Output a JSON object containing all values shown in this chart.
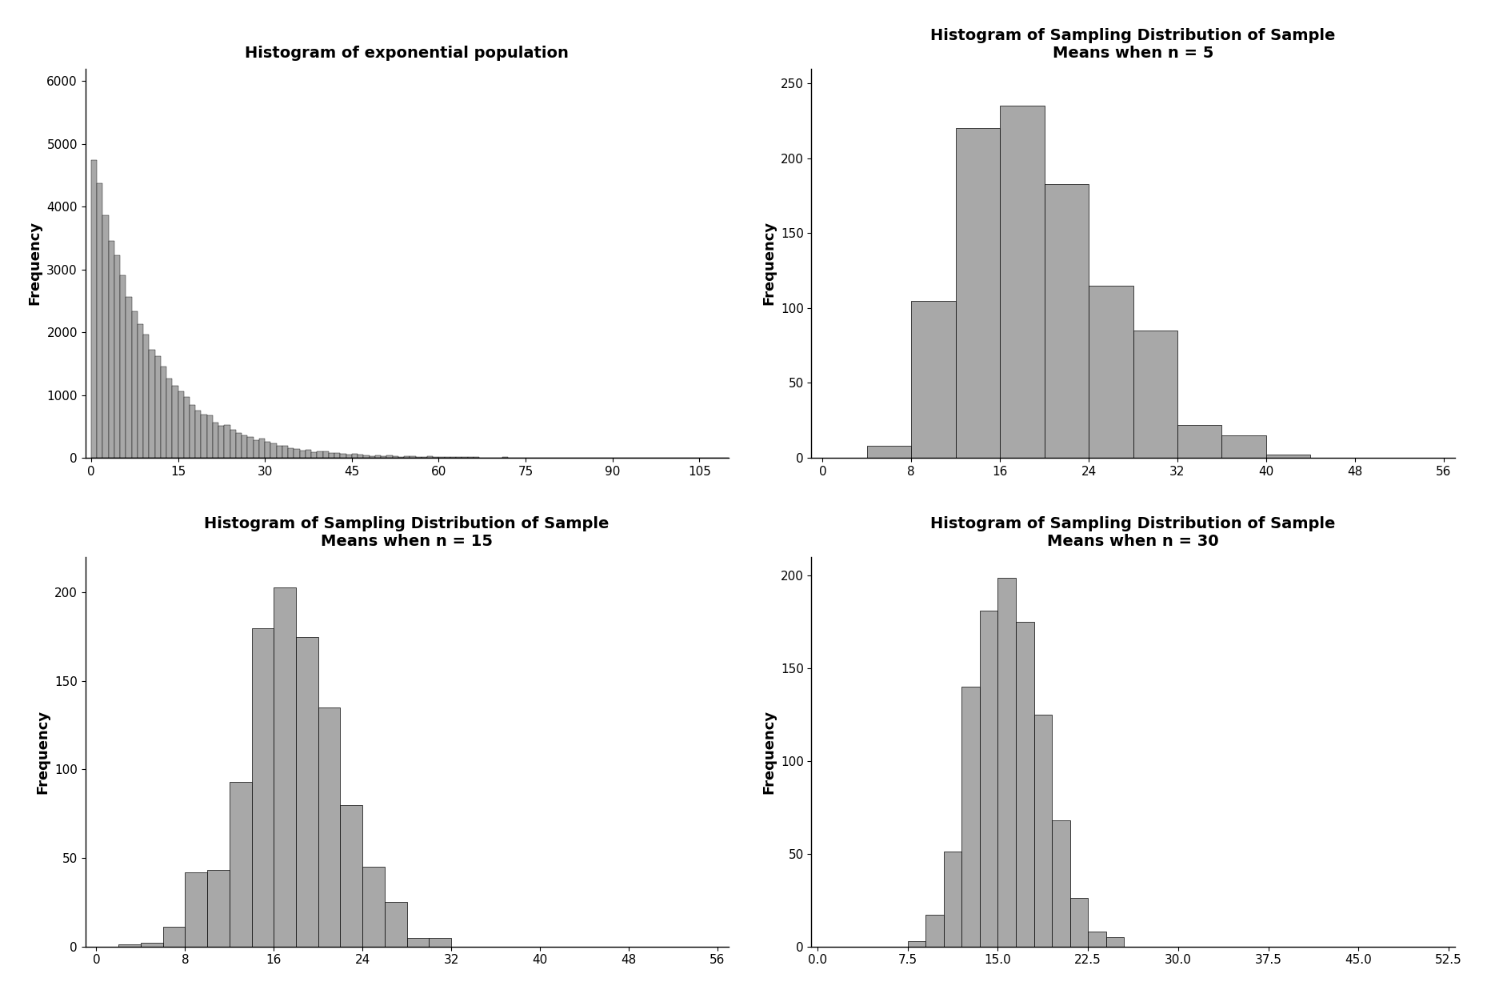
{
  "title_pop": "Histogram of exponential population",
  "title_n5": "Histogram of Sampling Distribution of Sample\nMeans when n = 5",
  "title_n15": "Histogram of Sampling Distribution of Sample\nMeans when n = 15",
  "title_n30": "Histogram of Sampling Distribution of Sample\nMeans when n = 30",
  "ylabel": "Frequency",
  "bar_color": "#a8a8a8",
  "bar_edgecolor": "#000000",
  "background_color": "#ffffff",
  "pop_xlim": [
    -1,
    110
  ],
  "pop_ylim": [
    0,
    6200
  ],
  "pop_xticks": [
    0,
    15,
    30,
    45,
    60,
    75,
    90,
    105
  ],
  "pop_yticks": [
    0,
    1000,
    2000,
    3000,
    4000,
    5000,
    6000
  ],
  "n5_xlim": [
    -1,
    57
  ],
  "n5_ylim": [
    0,
    260
  ],
  "n5_xticks": [
    0,
    8,
    16,
    24,
    32,
    40,
    48,
    56
  ],
  "n5_yticks": [
    0,
    50,
    100,
    150,
    200,
    250
  ],
  "n5_bin_edges": [
    4,
    8,
    12,
    16,
    20,
    24,
    28,
    32,
    36,
    40
  ],
  "n5_heights": [
    8,
    105,
    220,
    235,
    183,
    115,
    85,
    22,
    15,
    2
  ],
  "n15_xlim": [
    -1,
    57
  ],
  "n15_ylim": [
    0,
    220
  ],
  "n15_xticks": [
    0,
    8,
    16,
    24,
    32,
    40,
    48,
    56
  ],
  "n15_yticks": [
    0,
    50,
    100,
    150,
    200
  ],
  "n15_bin_edges": [
    2,
    4,
    6,
    8,
    10,
    12,
    14,
    16,
    18,
    20,
    22,
    24,
    26,
    28,
    30,
    32
  ],
  "n15_heights": [
    1,
    2,
    11,
    42,
    43,
    93,
    180,
    203,
    175,
    135,
    80,
    45,
    25,
    5,
    5
  ],
  "n30_xlim": [
    -0.5,
    53
  ],
  "n30_ylim": [
    0,
    210
  ],
  "n30_xticks": [
    0,
    7.5,
    15,
    22.5,
    30,
    37.5,
    45,
    52.5
  ],
  "n30_yticks": [
    0,
    50,
    100,
    150,
    200
  ],
  "n30_bin_edges": [
    7.5,
    9.0,
    10.5,
    12.0,
    13.5,
    15.0,
    16.5,
    18.0,
    19.5,
    21.0,
    22.5,
    24.0,
    25.5
  ],
  "n30_heights": [
    3,
    17,
    51,
    140,
    181,
    199,
    175,
    125,
    68,
    26,
    8,
    5
  ],
  "title_fontsize": 14,
  "label_fontsize": 13,
  "tick_fontsize": 11,
  "lam": 10.0,
  "pop_size": 50000,
  "pop_seed": 12345
}
